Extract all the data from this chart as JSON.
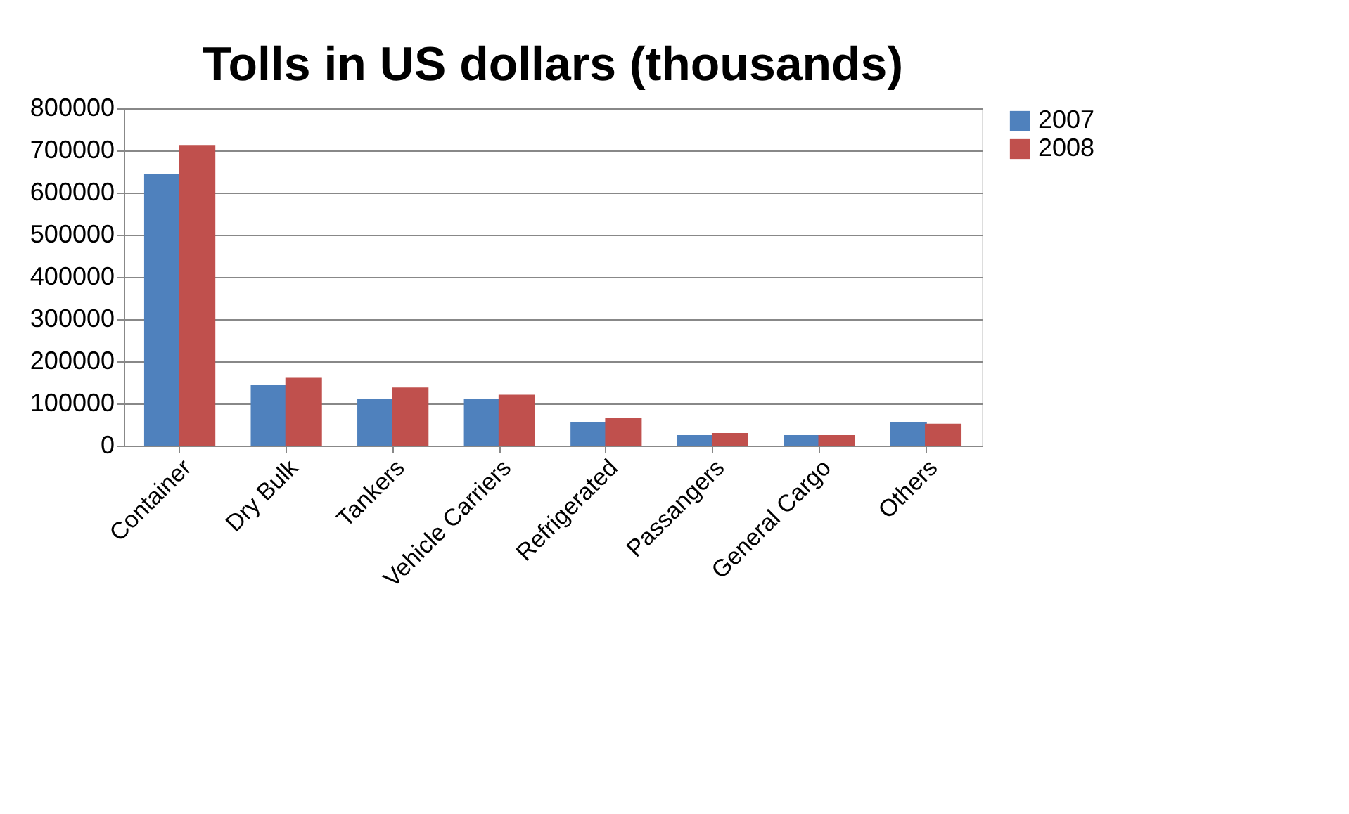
{
  "chart_data": {
    "type": "bar",
    "title": "Tolls in US dollars (thousands)",
    "categories": [
      "Container",
      "Dry Bulk",
      "Tankers",
      "Vehicle Carriers",
      "Refrigerated",
      "Passangers",
      "General Cargo",
      "Others"
    ],
    "series": [
      {
        "name": "2007",
        "color": "#4f81bd",
        "values": [
          645000,
          145000,
          110000,
          110000,
          55000,
          25000,
          25000,
          55000
        ]
      },
      {
        "name": "2008",
        "color": "#c0504d",
        "values": [
          713000,
          161000,
          138000,
          121000,
          65000,
          30000,
          25000,
          52000
        ]
      }
    ],
    "ylim": [
      0,
      800000
    ],
    "yticks": [
      0,
      100000,
      200000,
      300000,
      400000,
      500000,
      600000,
      700000,
      800000
    ],
    "grid": "y",
    "legend": "right"
  }
}
